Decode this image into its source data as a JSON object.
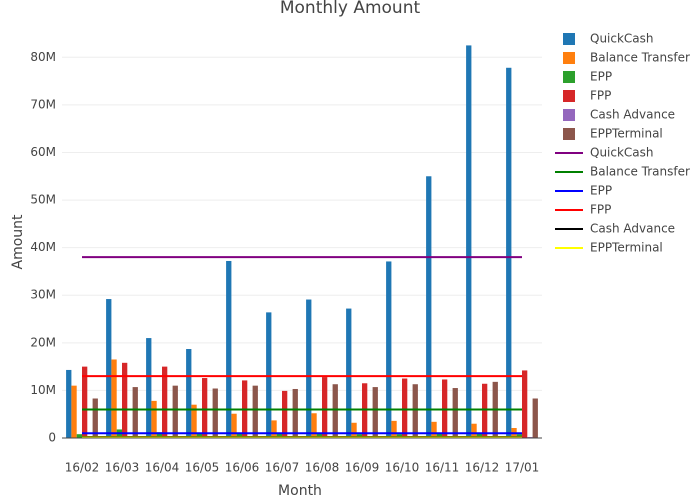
{
  "chart_data": {
    "type": "bar",
    "title": "Monthly Amount",
    "x_label": "Month",
    "y_label": "Amount",
    "categories": [
      "16/02",
      "16/03",
      "16/04",
      "16/05",
      "16/06",
      "16/07",
      "16/08",
      "16/09",
      "16/10",
      "16/11",
      "16/12",
      "17/01"
    ],
    "ylim": [
      0,
      87
    ],
    "yticks": [
      0,
      {
        "value": 10,
        "label": "10M"
      },
      {
        "value": 20,
        "label": "20M"
      },
      {
        "value": 30,
        "label": "30M"
      },
      {
        "value": 40,
        "label": "40M"
      },
      {
        "value": 50,
        "label": "50M"
      },
      {
        "value": 60,
        "label": "60M"
      },
      {
        "value": 70,
        "label": "70M"
      },
      {
        "value": 80,
        "label": "80M"
      }
    ],
    "grid": true,
    "series": [
      {
        "name": "QuickCash",
        "type": "bar",
        "color": "#1f77b4",
        "values": [
          14.3,
          29.2,
          21,
          18.7,
          37.2,
          26.4,
          29.1,
          27.2,
          37.1,
          55,
          82.5,
          77.8
        ]
      },
      {
        "name": "Balance Transfer",
        "type": "bar",
        "color": "#ff7f0e",
        "values": [
          11,
          16.5,
          7.8,
          7,
          5.1,
          3.7,
          5.2,
          3.2,
          3.6,
          3.4,
          3,
          2.1
        ]
      },
      {
        "name": "EPP",
        "type": "bar",
        "color": "#2ca02c",
        "values": [
          0.8,
          1.8,
          1.2,
          1.1,
          1,
          0.9,
          0.9,
          0.8,
          0.8,
          0.9,
          0.9,
          0.8
        ]
      },
      {
        "name": "FPP",
        "type": "bar",
        "color": "#d62728",
        "values": [
          15,
          15.8,
          15,
          12.6,
          12.1,
          9.9,
          12.8,
          11.5,
          12.5,
          12.3,
          11.4,
          14.2
        ]
      },
      {
        "name": "Cash Advance",
        "type": "bar",
        "color": "#9467bd",
        "values": [
          0.2,
          0.2,
          0.2,
          0.2,
          0.2,
          0.2,
          0.2,
          0.2,
          0.2,
          0.2,
          0.2,
          0.2
        ]
      },
      {
        "name": "EPPTerminal",
        "type": "bar",
        "color": "#8c564b",
        "values": [
          8.3,
          10.7,
          11,
          10.4,
          11,
          10.3,
          11.3,
          10.7,
          11.3,
          10.5,
          11.8,
          8.3
        ]
      },
      {
        "name": "QuickCash",
        "type": "line",
        "color": "#800080",
        "values": [
          38,
          38,
          38,
          38,
          38,
          38,
          38,
          38,
          38,
          38,
          38,
          38
        ]
      },
      {
        "name": "Balance Transfer",
        "type": "line",
        "color": "#008000",
        "values": [
          6,
          6,
          6,
          6,
          6,
          6,
          6,
          6,
          6,
          6,
          6,
          6
        ]
      },
      {
        "name": "EPP",
        "type": "line",
        "color": "#0000ff",
        "values": [
          1,
          1,
          1,
          1,
          1,
          1,
          1,
          1,
          1,
          1,
          1,
          1
        ]
      },
      {
        "name": "FPP",
        "type": "line",
        "color": "#ff0000",
        "values": [
          13,
          13,
          13,
          13,
          13,
          13,
          13,
          13,
          13,
          13,
          13,
          13
        ]
      },
      {
        "name": "Cash Advance",
        "type": "line",
        "color": "#000000",
        "values": [
          0.2,
          0.2,
          0.2,
          0.2,
          0.2,
          0.2,
          0.2,
          0.2,
          0.2,
          0.2,
          0.2,
          0.2
        ]
      },
      {
        "name": "EPPTerminal",
        "type": "line",
        "color": "#ffff00",
        "values": [
          0.1,
          0.1,
          0.1,
          0.1,
          0.1,
          0.1,
          0.1,
          0.1,
          0.1,
          0.1,
          0.1,
          0.1
        ]
      }
    ]
  }
}
